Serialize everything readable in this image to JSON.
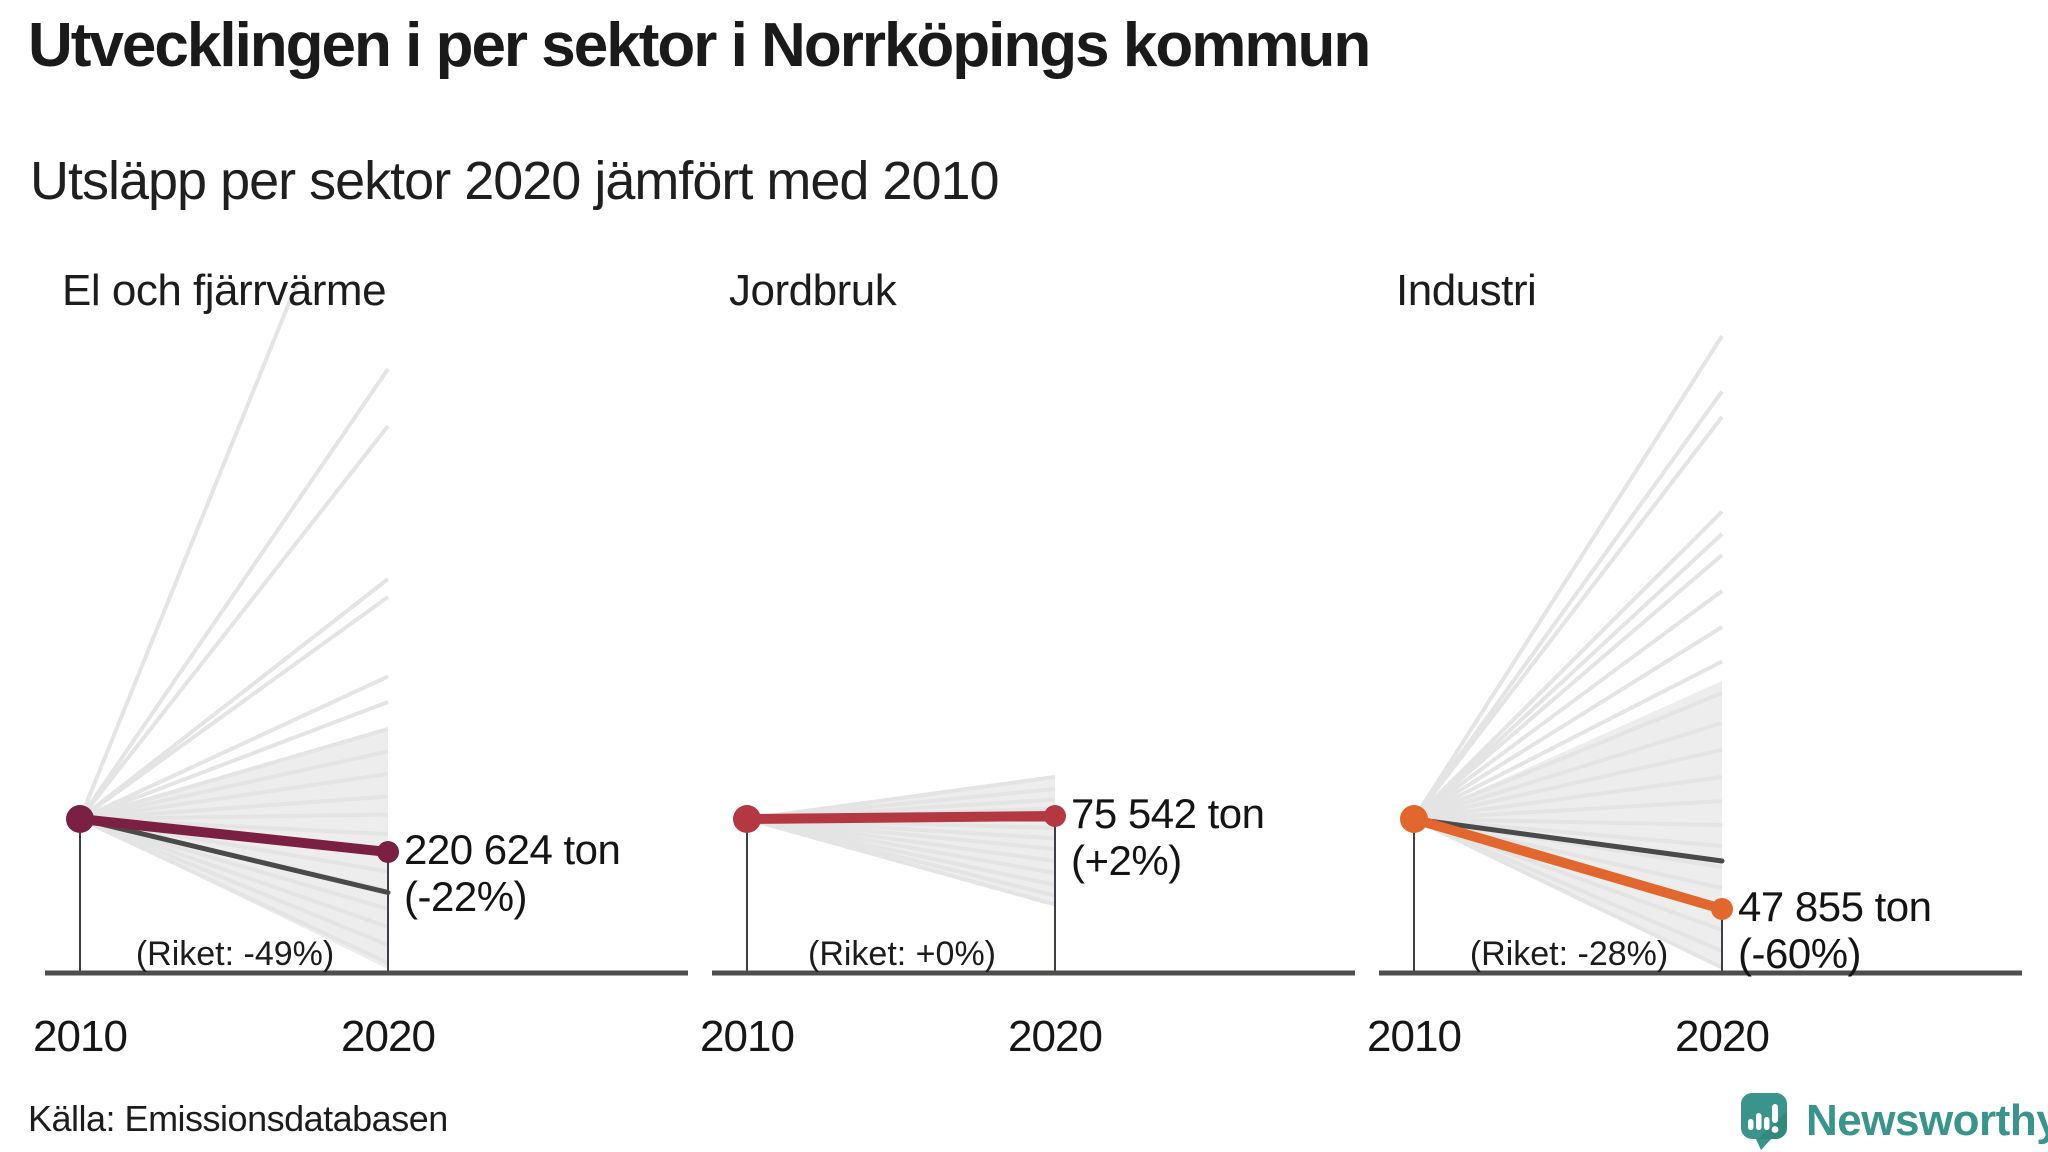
{
  "header": {
    "title": "Utvecklingen i per sektor i Norrköpings kommun",
    "subtitle": "Utsläpp per sektor 2020 jämfört med 2010"
  },
  "footer": {
    "source_label": "Källa: Emissionsdatabasen",
    "brand": "Newsworthy",
    "brand_color": "#3a948b",
    "brand_color_dark": "#2e7e75"
  },
  "colors": {
    "axis": "#4d4d4d",
    "riket_line": "#4a4a4a",
    "drop_line": "#3e3e47",
    "spread_fill": "#ededed",
    "spread_line": "#e4e4e4",
    "text": "#1a1a1a"
  },
  "chart_data": {
    "type": "line",
    "subtype": "slope-small-multiples",
    "x": [
      2010,
      2020
    ],
    "x_labels": [
      "2010",
      "2020"
    ],
    "unit": "ton",
    "panels": [
      {
        "sector": "El och fjärrvärme",
        "value_2020": "220 624 ton",
        "change_pct": -22,
        "change_label": "(-22%)",
        "riket_pct": -49,
        "riket_label": "(Riket: -49%)",
        "color": "#7b2042",
        "spread": {
          "wedge": [
            60,
            -100
          ],
          "lines": [
            507,
            300,
            262,
            160,
            148,
            95,
            78,
            60,
            45,
            30,
            15,
            3,
            -10,
            -22,
            -35,
            -48,
            -60,
            -72,
            -84,
            -96
          ]
        }
      },
      {
        "sector": "Jordbruk",
        "value_2020": "75 542 ton",
        "change_pct": 2,
        "change_label": "(+2%)",
        "riket_pct": 0,
        "riket_label": "(Riket: +0%)",
        "color": "#b43842",
        "spread": {
          "wedge": [
            28,
            -57
          ],
          "lines": [
            28,
            20,
            13,
            7,
            1,
            -6,
            -13,
            -20,
            -28,
            -36,
            -44,
            -51,
            -57
          ]
        }
      },
      {
        "sector": "Industri",
        "value_2020": "47 855 ton",
        "change_pct": -60,
        "change_label": "(-60%)",
        "riket_pct": -28,
        "riket_label": "(Riket: -28%)",
        "color": "#e2672e",
        "spread": {
          "wedge": [
            92,
            -100
          ],
          "lines": [
            322,
            285,
            268,
            205,
            190,
            176,
            152,
            128,
            105,
            84,
            64,
            46,
            28,
            12,
            -4,
            -18,
            -32,
            -46,
            -60,
            -74,
            -88,
            -99
          ]
        }
      }
    ]
  }
}
